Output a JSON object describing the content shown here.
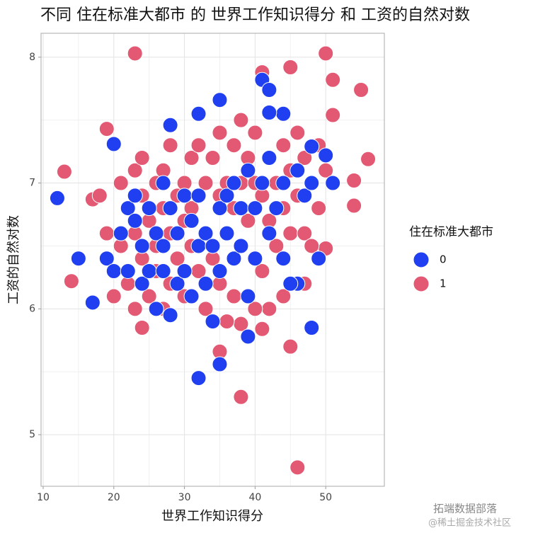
{
  "chart_data": {
    "type": "scatter",
    "title": "不同 住在标准大都市 的 世界工作知识得分 和 工资的自然对数",
    "x_label": "世界工作知识得分",
    "y_label": "工资的自然对数",
    "legend_title": "住在标准大都市",
    "legend_position": "right",
    "grid": true,
    "annotations": [
      "拓端数据部落",
      "@稀土掘金技术社区"
    ],
    "xlim": [
      9.7,
      58.3
    ],
    "ylim": [
      4.59,
      8.19
    ],
    "xticks": [
      10,
      20,
      30,
      40,
      50
    ],
    "yticks": [
      5,
      6,
      7,
      8
    ],
    "series": [
      {
        "name": "0",
        "color": "#1f3ff0",
        "x": [
          12,
          15,
          17,
          20,
          32,
          35,
          48,
          39,
          41,
          42,
          35,
          32,
          28,
          44,
          42,
          50,
          51,
          48,
          46,
          19,
          20,
          21,
          22,
          22,
          23,
          23,
          24,
          24,
          25,
          25,
          26,
          26,
          27,
          27,
          27,
          28,
          28,
          29,
          29,
          30,
          30,
          31,
          31,
          32,
          32,
          33,
          33,
          34,
          34,
          35,
          35,
          36,
          36,
          37,
          37,
          38,
          38,
          39,
          39,
          40,
          40,
          41,
          42,
          42,
          43,
          44,
          44,
          45,
          46,
          47,
          48,
          49
        ],
        "values": [
          6.88,
          6.4,
          6.05,
          7.31,
          5.45,
          5.56,
          5.85,
          5.78,
          7.82,
          7.74,
          7.66,
          7.55,
          7.46,
          7.55,
          7.56,
          7.22,
          7.0,
          7.29,
          6.2,
          6.4,
          6.3,
          6.6,
          6.3,
          6.8,
          6.7,
          6.9,
          6.2,
          6.5,
          6.8,
          6.3,
          6.6,
          6.0,
          6.5,
          7.0,
          6.3,
          5.95,
          6.8,
          6.6,
          6.2,
          6.9,
          6.3,
          6.1,
          6.7,
          6.5,
          6.9,
          6.2,
          6.6,
          5.9,
          6.5,
          6.8,
          6.3,
          6.9,
          6.6,
          7.0,
          6.4,
          6.5,
          6.8,
          7.1,
          6.1,
          6.8,
          6.4,
          7.0,
          6.6,
          7.2,
          6.8,
          6.4,
          7.0,
          6.2,
          7.1,
          6.9,
          7.0,
          6.4
        ]
      },
      {
        "name": "1",
        "color": "#e35872",
        "x": [
          23,
          50,
          46,
          38,
          13,
          14,
          17,
          19,
          55,
          56,
          54,
          54,
          45,
          41,
          45,
          41,
          38,
          35,
          24,
          47,
          50,
          51,
          51,
          18,
          19,
          20,
          20,
          21,
          21,
          22,
          22,
          23,
          23,
          23,
          24,
          24,
          24,
          25,
          25,
          26,
          26,
          26,
          27,
          27,
          27,
          28,
          28,
          28,
          29,
          29,
          30,
          30,
          30,
          31,
          31,
          31,
          32,
          32,
          32,
          33,
          33,
          33,
          34,
          34,
          35,
          35,
          35,
          36,
          36,
          37,
          37,
          37,
          38,
          38,
          38,
          39,
          39,
          40,
          40,
          40,
          41,
          41,
          42,
          42,
          43,
          43,
          44,
          44,
          45,
          45,
          46,
          46,
          47,
          47,
          48,
          48,
          49,
          49,
          50,
          44,
          42,
          40,
          36
        ],
        "values": [
          8.03,
          8.03,
          4.74,
          5.3,
          7.09,
          6.22,
          6.87,
          7.43,
          7.74,
          7.19,
          7.02,
          6.82,
          7.92,
          7.88,
          5.7,
          5.84,
          5.88,
          5.66,
          5.85,
          6.2,
          6.48,
          7.82,
          7.54,
          6.9,
          6.6,
          6.3,
          6.1,
          7.0,
          6.5,
          6.8,
          6.2,
          7.1,
          6.6,
          6.0,
          6.9,
          6.4,
          7.2,
          6.7,
          6.1,
          7.0,
          6.5,
          6.3,
          7.1,
          6.8,
          6.0,
          6.6,
          7.3,
          6.2,
          6.9,
          6.4,
          7.0,
          6.7,
          6.1,
          7.2,
          6.5,
          6.8,
          6.9,
          6.3,
          7.3,
          7.0,
          6.6,
          6.0,
          7.2,
          6.4,
          6.9,
          6.2,
          7.4,
          7.0,
          6.6,
          7.3,
          6.8,
          6.1,
          7.0,
          6.5,
          7.5,
          7.2,
          6.7,
          7.0,
          6.4,
          7.4,
          6.9,
          6.3,
          7.2,
          6.7,
          7.0,
          6.5,
          7.3,
          6.8,
          7.1,
          6.6,
          7.4,
          6.9,
          7.2,
          6.6,
          7.0,
          6.5,
          7.3,
          6.8,
          7.1,
          6.1,
          6.0,
          6.0,
          5.9
        ]
      }
    ]
  }
}
